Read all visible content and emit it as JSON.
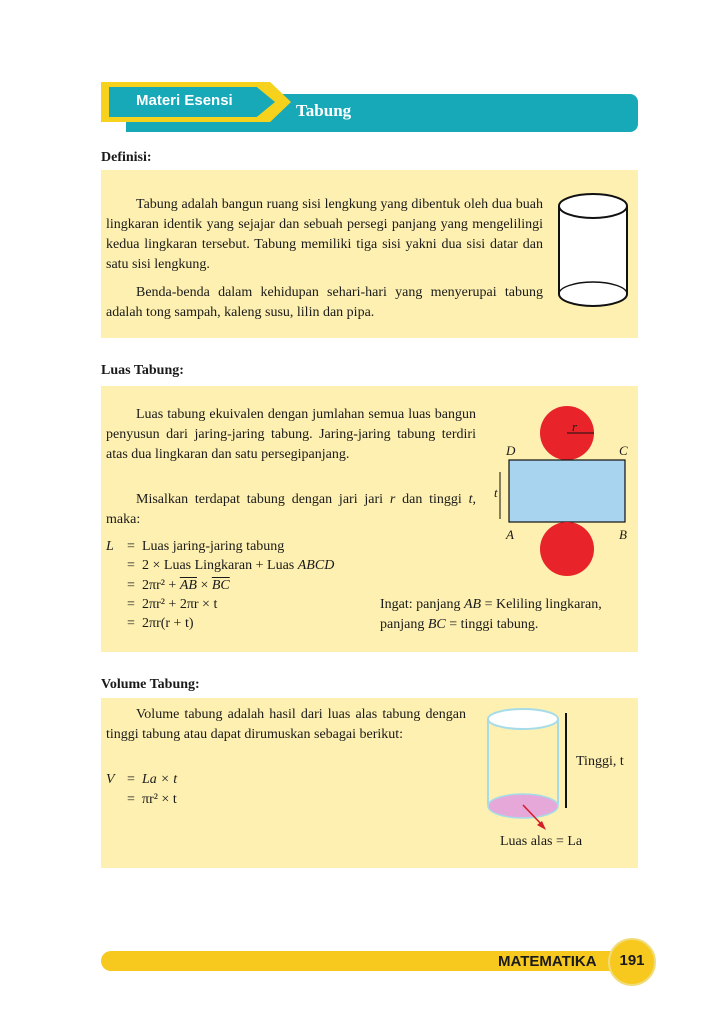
{
  "header": {
    "tag_label": "Materi Esensi",
    "title": "Tabung"
  },
  "definisi": {
    "heading": "Definisi:",
    "paragraph1": "Tabung adalah bangun ruang sisi lengkung yang dibentuk oleh dua buah lingkaran identik yang sejajar dan sebuah persegi panjang yang mengelilingi kedua lingkaran tersebut. Tabung memiliki tiga sisi yakni dua sisi datar dan satu sisi lengkung.",
    "paragraph2": "Benda-benda dalam kehidupan sehari-hari yang menyerupai tabung adalah tong sampah, kaleng susu, lilin dan pipa."
  },
  "luas": {
    "heading": "Luas Tabung:",
    "paragraph1": "Luas tabung ekuivalen dengan jumlahan semua luas bangun penyusun dari jaring-jaring tabung. Jaring-jaring tabung terdiri atas dua lingkaran dan satu persegipanjang.",
    "paragraph2_a": "Misalkan terdapat tabung dengan jari jari ",
    "paragraph2_r": "r",
    "paragraph2_b": " dan tinggi ",
    "paragraph2_t": "t",
    "paragraph2_c": ", maka:",
    "formula": {
      "lhs": "L",
      "eq": "=",
      "line1": "Luas jaring-jaring tabung",
      "line2_a": "2 × Luas Lingkaran + Luas ",
      "line2_b": "ABCD",
      "line3_a": "2πr² + ",
      "line3_ab": "AB",
      "line3_x": " × ",
      "line3_bc": "BC",
      "line4": "2πr² + 2πr × t",
      "line5": "2πr(r + t)"
    },
    "note_line1_a": "Ingat: panjang ",
    "note_line1_ab": "AB",
    "note_line1_b": " = Keliling lingkaran,",
    "note_line2_a": "panjang ",
    "note_line2_bc": "BC",
    "note_line2_b": " = tinggi tabung.",
    "net_labels": {
      "r": "r",
      "t": "t",
      "A": "A",
      "B": "B",
      "C": "C",
      "D": "D"
    },
    "net_colors": {
      "circle": "#e8232a",
      "rectangle": "#a8d4f0"
    }
  },
  "volume": {
    "heading": "Volume Tabung:",
    "paragraph1": "Volume tabung adalah hasil dari luas alas tabung dengan tinggi tabung atau dapat dirumuskan sebagai berikut:",
    "formula": {
      "lhs": "V",
      "eq": "=",
      "line1": "La × t",
      "line2": "πr² × t"
    },
    "height_label": "Tinggi, t",
    "base_label": "Luas alas = La"
  },
  "footer": {
    "subject": "MATEMATIKA",
    "page_number": "191"
  },
  "colors": {
    "teal": "#17a9b8",
    "yellow": "#f7d21c",
    "box_bg": "#fdf0b0"
  }
}
